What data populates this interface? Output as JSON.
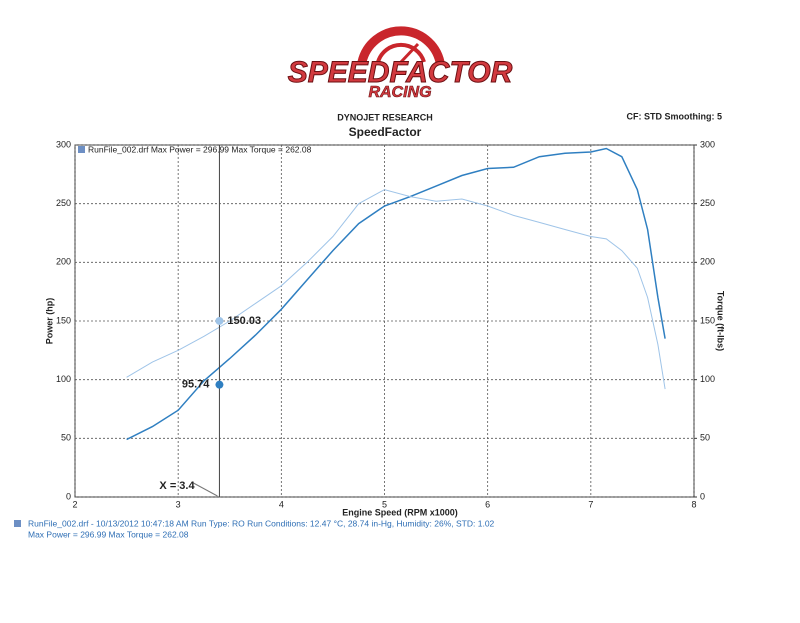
{
  "header": {
    "logo_main": "SPEEDFACTOR",
    "logo_sub": "RACING",
    "company": "DYNOJET RESEARCH",
    "shop": "SpeedFactor",
    "settings": "CF: STD  Smoothing: 5"
  },
  "chart_data": {
    "type": "line",
    "legend_text": "RunFile_002.drf Max Power = 296.99   Max Torque = 262.08",
    "x_label": "Engine Speed (RPM x1000)",
    "y_label": "Power (hp)",
    "y2_label": "Torque (ft-lbs)",
    "xlim": [
      2,
      8
    ],
    "xticks": [
      2,
      3,
      4,
      5,
      6,
      7,
      8
    ],
    "ylim": [
      0,
      300
    ],
    "yticks": [
      0,
      50,
      100,
      150,
      200,
      250,
      300
    ],
    "y2lim": [
      0,
      300
    ],
    "y2ticks": [
      0,
      50,
      100,
      150,
      200,
      250,
      300
    ],
    "grid": true,
    "x": [
      2.5,
      2.75,
      3,
      3.25,
      3.5,
      3.75,
      4,
      4.25,
      4.5,
      4.75,
      5,
      5.25,
      5.5,
      5.75,
      6,
      6.25,
      6.5,
      6.75,
      7,
      7.15,
      7.3,
      7.45,
      7.55,
      7.65,
      7.72
    ],
    "series": [
      {
        "name": "Power",
        "color": "#2f7fc1",
        "values": [
          49,
          60,
          74,
          99,
          118,
          138,
          160,
          185,
          210,
          233,
          248,
          256,
          265,
          274,
          280,
          281,
          290,
          293,
          294,
          297,
          290,
          262,
          228,
          170,
          135
        ]
      },
      {
        "name": "Torque",
        "color": "#9fc4e8",
        "axis": "y2",
        "values": [
          102,
          115,
          125,
          137,
          150,
          165,
          180,
          200,
          222,
          250,
          262,
          256,
          252,
          254,
          248,
          240,
          234,
          228,
          222,
          220,
          210,
          195,
          170,
          130,
          92
        ]
      }
    ],
    "cursor": {
      "x": {
        "value": 3.4,
        "label": "X = 3.4"
      },
      "values": [
        95.74,
        150.03
      ]
    }
  },
  "footer": {
    "line1": "RunFile_002.drf - 10/13/2012 10:47:18 AM  Run Type: RO  Run Conditions: 12.47 °C, 28.74 in-Hg,  Humidity:  26%, STD: 1.02",
    "line2": "Max Power = 296.99  Max Torque = 262.08"
  }
}
